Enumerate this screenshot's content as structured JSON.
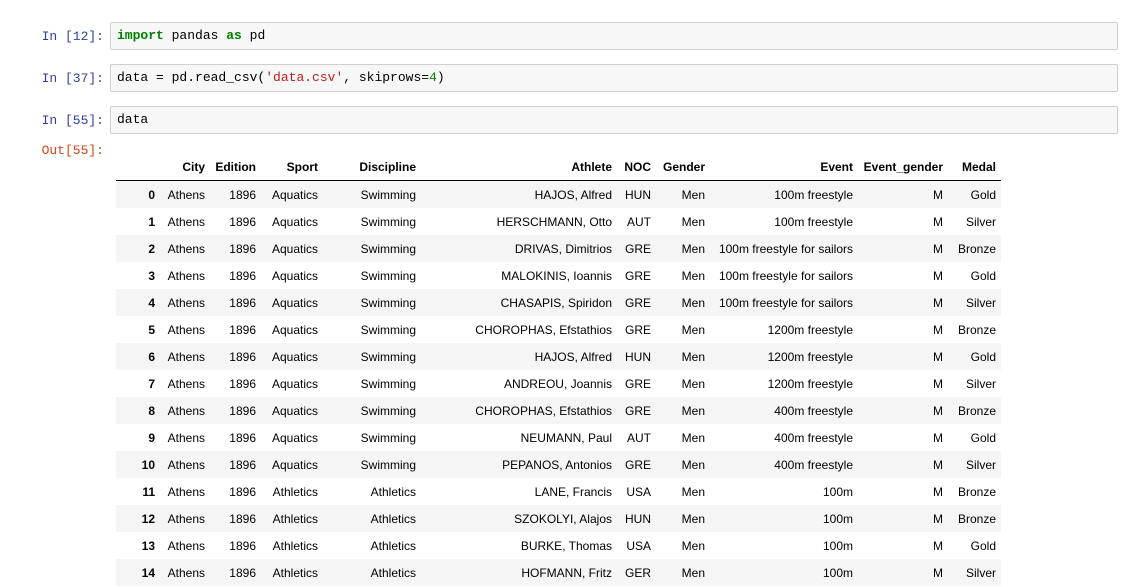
{
  "cells": [
    {
      "prompt": "In [12]:",
      "tokens": [
        "import",
        " pandas ",
        "as",
        " pd"
      ]
    },
    {
      "prompt": "In [37]:",
      "tokens": [
        "data = pd.read_csv(",
        "'data.csv'",
        ", skiprows=",
        "4",
        ")"
      ]
    },
    {
      "prompt": "In [55]:",
      "tokens": [
        "data"
      ]
    }
  ],
  "output": {
    "prompt": "Out[55]:",
    "table": {
      "columns": [
        "City",
        "Edition",
        "Sport",
        "Discipline",
        "Athlete",
        "NOC",
        "Gender",
        "Event",
        "Event_gender",
        "Medal"
      ],
      "rows": [
        [
          0,
          "Athens",
          1896,
          "Aquatics",
          "Swimming",
          "HAJOS, Alfred",
          "HUN",
          "Men",
          "100m freestyle",
          "M",
          "Gold"
        ],
        [
          1,
          "Athens",
          1896,
          "Aquatics",
          "Swimming",
          "HERSCHMANN, Otto",
          "AUT",
          "Men",
          "100m freestyle",
          "M",
          "Silver"
        ],
        [
          2,
          "Athens",
          1896,
          "Aquatics",
          "Swimming",
          "DRIVAS, Dimitrios",
          "GRE",
          "Men",
          "100m freestyle for sailors",
          "M",
          "Bronze"
        ],
        [
          3,
          "Athens",
          1896,
          "Aquatics",
          "Swimming",
          "MALOKINIS, Ioannis",
          "GRE",
          "Men",
          "100m freestyle for sailors",
          "M",
          "Gold"
        ],
        [
          4,
          "Athens",
          1896,
          "Aquatics",
          "Swimming",
          "CHASAPIS, Spiridon",
          "GRE",
          "Men",
          "100m freestyle for sailors",
          "M",
          "Silver"
        ],
        [
          5,
          "Athens",
          1896,
          "Aquatics",
          "Swimming",
          "CHOROPHAS, Efstathios",
          "GRE",
          "Men",
          "1200m freestyle",
          "M",
          "Bronze"
        ],
        [
          6,
          "Athens",
          1896,
          "Aquatics",
          "Swimming",
          "HAJOS, Alfred",
          "HUN",
          "Men",
          "1200m freestyle",
          "M",
          "Gold"
        ],
        [
          7,
          "Athens",
          1896,
          "Aquatics",
          "Swimming",
          "ANDREOU, Joannis",
          "GRE",
          "Men",
          "1200m freestyle",
          "M",
          "Silver"
        ],
        [
          8,
          "Athens",
          1896,
          "Aquatics",
          "Swimming",
          "CHOROPHAS, Efstathios",
          "GRE",
          "Men",
          "400m freestyle",
          "M",
          "Bronze"
        ],
        [
          9,
          "Athens",
          1896,
          "Aquatics",
          "Swimming",
          "NEUMANN, Paul",
          "AUT",
          "Men",
          "400m freestyle",
          "M",
          "Gold"
        ],
        [
          10,
          "Athens",
          1896,
          "Aquatics",
          "Swimming",
          "PEPANOS, Antonios",
          "GRE",
          "Men",
          "400m freestyle",
          "M",
          "Silver"
        ],
        [
          11,
          "Athens",
          1896,
          "Athletics",
          "Athletics",
          "LANE, Francis",
          "USA",
          "Men",
          "100m",
          "M",
          "Bronze"
        ],
        [
          12,
          "Athens",
          1896,
          "Athletics",
          "Athletics",
          "SZOKOLYI, Alajos",
          "HUN",
          "Men",
          "100m",
          "M",
          "Bronze"
        ],
        [
          13,
          "Athens",
          1896,
          "Athletics",
          "Athletics",
          "BURKE, Thomas",
          "USA",
          "Men",
          "100m",
          "M",
          "Gold"
        ],
        [
          14,
          "Athens",
          1896,
          "Athletics",
          "Athletics",
          "HOFMANN, Fritz",
          "GER",
          "Men",
          "100m",
          "M",
          "Silver"
        ]
      ]
    }
  }
}
